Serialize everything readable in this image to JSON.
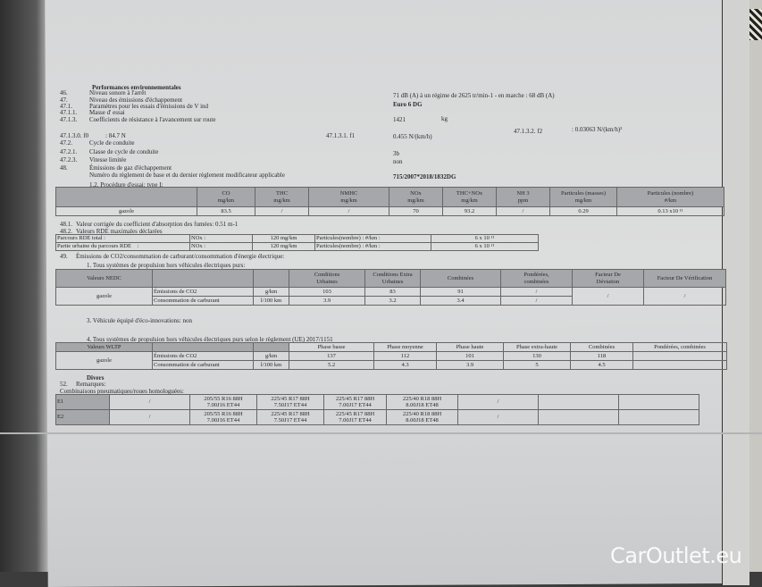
{
  "header": {
    "section_title": "Performances environnementales",
    "items": [
      {
        "num": "46.",
        "label": "Niveau sonore à l'arrêt",
        "value": "71 dB (A)  à un régime de 2625 tr/min-1 - en marche :   68 dB (A)"
      },
      {
        "num": "47.",
        "label": "Niveau des émissions d'échappement",
        "value": "Euro 6 DG"
      },
      {
        "num": "47.1.",
        "label": "Paramètres pour les essais d'émissions de V ind",
        "value": ""
      },
      {
        "num": "47.1.1.",
        "label": "Masse d' essai",
        "value": "1421",
        "unit": "kg"
      },
      {
        "num": "47.1.3.",
        "label": "Coefficients de résistance à l'avancement sur route",
        "value": ""
      },
      {
        "num": "47.1.3.0. f0",
        "label": ": 84.7 N",
        "f1_label": "47.1.3.1.  f1",
        "value": "0.455 N/(km/h)",
        "f2_label": "47.1.3.2.  f2",
        "f2_value": ": 0.03063 N/(km/h)²"
      },
      {
        "num": "47.2.",
        "label": "Cycle de conduite",
        "value": ""
      },
      {
        "num": "47.2.1.",
        "label": "Classe de cycle de conduite",
        "value": "3b"
      },
      {
        "num": "47.2.3.",
        "label": "Vitesse limitée",
        "value": "non"
      },
      {
        "num": "48.",
        "label": "Émissions de gaz d'échappement",
        "value": ""
      },
      {
        "num": "",
        "label": "Numéro du règlement de base et du dernier règlement modificateur applicable",
        "value": "715/2007*2018/1832DG"
      }
    ],
    "procedure": "1.2. Procédure d'essai: type I:"
  },
  "emissions_table": {
    "columns": [
      "",
      "CO\nmg/km",
      "THC\nmg/km",
      "NMHC\nmg/km",
      "NOx\nmg/km",
      "THC+NOx\nmg/km",
      "NH 3\nppm",
      "Particules (masses)\nmg/km",
      "Particules (nombre)\n#/km"
    ],
    "rows": [
      [
        "gazole",
        "83.5",
        "/",
        "/",
        "70",
        "93.2",
        "/",
        "0.29",
        "0.13 x10 ¹¹"
      ]
    ]
  },
  "smoke": {
    "num": "48.1.",
    "label": "Valeur corrigée du coefficient d'absorption des fumées: 0.51 m-1"
  },
  "rde": {
    "num": "48.2.",
    "label": "Valeurs RDE maximales déclarées",
    "rows": [
      [
        "Parcours RDE total :",
        "NOx :",
        "120 mg/km",
        "Particules(nombre) : #/km :",
        "6 x 10 ¹¹"
      ],
      [
        "Partie urbaine du parcours RDE    :",
        "NOx :",
        "120 mg/km",
        "Particules(nombre) : #/km :",
        "6 x 10 ¹¹"
      ]
    ]
  },
  "co2": {
    "num": "49.",
    "label": "Émissions de CO2/consommation de carburant/consommation d'énergie électrique:",
    "sub1": "1. Tous systèmes de propulsion hors véhicules électriques purs:",
    "nedc": {
      "columns": [
        "Valeurs NEDC",
        "",
        "",
        "Conditions\nUrbaines",
        "Conditions Extra\nUrbaines",
        "Combinées",
        "Pondérées,\ncombinées",
        "Facteur De\nDéviation",
        "Facteur De Vérification"
      ],
      "fuel": "gazole",
      "rows": [
        [
          "Émissions de CO2",
          "g/km",
          "103",
          "83",
          "91",
          "/"
        ],
        [
          "Consommation de carburant",
          "l/100 km",
          "3.9",
          "3.2",
          "3.4",
          "/"
        ]
      ],
      "deviation": "/",
      "verification": "/"
    },
    "sub3": "3. Véhicule équipé d'éco-innovations: non",
    "sub4": "4. Tous systèmes de propulsion hors véhicules électriques purs selon le règlement (UE) 2017/1151",
    "wltp": {
      "columns": [
        "Valeurs WLTP",
        "",
        "",
        "Phase basse",
        "Phase moyenne",
        "Phase haute",
        "Phase extra-haute",
        "Combinées",
        "Pondérées, combinées"
      ],
      "fuel": "gazole",
      "rows": [
        [
          "Émissions de CO2",
          "g/km",
          "137",
          "112",
          "101",
          "130",
          "118",
          ""
        ],
        [
          "Consommation de carburant",
          "l/100 km",
          "5.2",
          "4.3",
          "3.9",
          "5",
          "4.5",
          ""
        ]
      ]
    }
  },
  "divers": {
    "title": "Divers",
    "remarks": {
      "num": "52.",
      "label": "Remarques:"
    },
    "tyres_label": "Combinaisons pneumatiques/roues homologuées:",
    "tyres": [
      [
        "E1",
        "/",
        "205/55 R16 88H\n7.00J16 ET44",
        "225/45 R17 88H\n7.50J17 ET44",
        "225/45 R17 88H\n7.00J17 ET44",
        "225/40 R18 88H\n8.00J18 ET48",
        "/",
        "",
        ""
      ],
      [
        "E2",
        "/",
        "205/55 R16 88H\n7.00J16 ET44",
        "225/45 R17 88H\n7.50J17 ET44",
        "225/45 R17 88H\n7.00J17 ET44",
        "225/40 R18 88H\n8.00J18 ET48",
        "/",
        "",
        ""
      ]
    ]
  },
  "watermark": "CarOutlet.eu",
  "colors": {
    "header_fill": "#a6a7aa",
    "paper": "#d8d9da",
    "background": "#3c3c3c"
  }
}
